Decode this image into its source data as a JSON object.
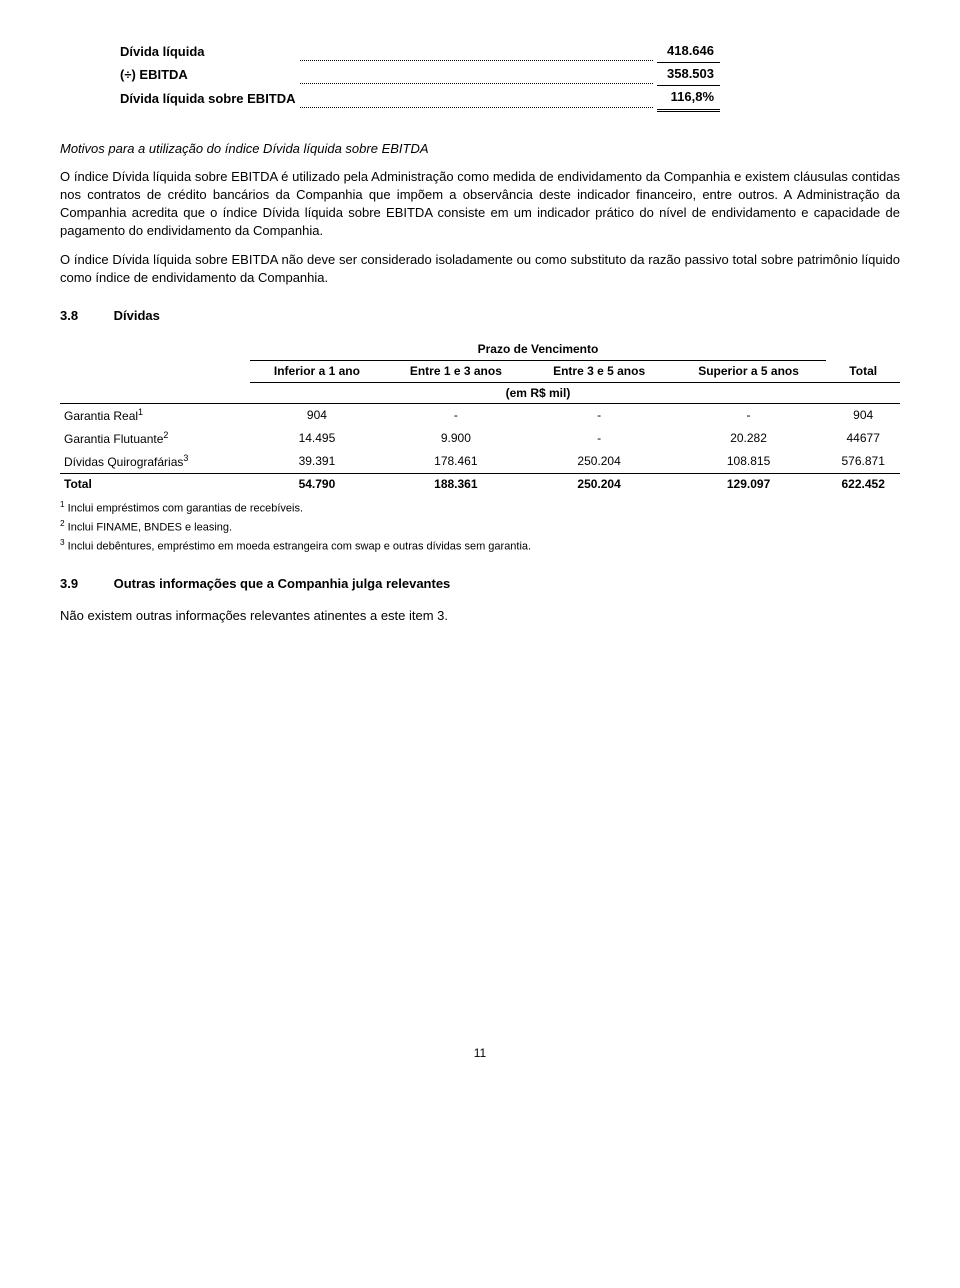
{
  "topTable": {
    "rows": [
      {
        "label": "Dívida líquida",
        "value": "418.646",
        "rule": "single"
      },
      {
        "label": "(÷) EBITDA",
        "value": "358.503",
        "rule": "single"
      },
      {
        "label": "Dívida líquida sobre EBITDA",
        "value": "116,8%",
        "rule": "double"
      }
    ]
  },
  "italicHeading": "Motivos para a utilização do índice Dívida líquida sobre EBITDA",
  "para1": "O índice Dívida líquida sobre EBITDA é utilizado pela Administração como medida de endividamento da Companhia e existem cláusulas contidas nos contratos de crédito bancários da Companhia que impõem a observância deste indicador financeiro, entre outros. A Administração da Companhia acredita que o índice Dívida líquida sobre EBITDA consiste em um indicador prático do nível de endividamento e capacidade de pagamento do endividamento da Companhia.",
  "para2": "O índice Dívida líquida sobre EBITDA não deve ser considerado isoladamente ou como substituto da razão passivo total sobre patrimônio líquido como índice de endividamento da Companhia.",
  "section38": {
    "num": "3.8",
    "title": "Dívidas"
  },
  "debtTable": {
    "spanHeader": "Prazo de Vencimento",
    "columns": [
      "Inferior a 1 ano",
      "Entre 1 e 3 anos",
      "Entre 3 e 5 anos",
      "Superior a 5 anos"
    ],
    "totalCol": "Total",
    "unitRow": "(em R$ mil)",
    "rows": [
      {
        "label": "Garantia Real",
        "sup": "1",
        "cells": [
          "904",
          "-",
          "-",
          "-",
          "904"
        ]
      },
      {
        "label": "Garantia Flutuante",
        "sup": "2",
        "cells": [
          "14.495",
          "9.900",
          "-",
          "20.282",
          "44677"
        ]
      },
      {
        "label": "Dívidas Quirografárias",
        "sup": "3",
        "cells": [
          "39.391",
          "178.461",
          "250.204",
          "108.815",
          "576.871"
        ]
      }
    ],
    "totalRow": {
      "label": "Total",
      "cells": [
        "54.790",
        "188.361",
        "250.204",
        "129.097",
        "622.452"
      ]
    }
  },
  "footnotes": [
    {
      "sup": "1",
      "text": "Inclui empréstimos com garantias de recebíveis."
    },
    {
      "sup": "2",
      "text": "Inclui FINAME, BNDES e leasing."
    },
    {
      "sup": "3",
      "text": "Inclui debêntures, empréstimo em moeda estrangeira com swap e outras dívidas sem garantia."
    }
  ],
  "section39": {
    "num": "3.9",
    "title": "Outras informações que a Companhia julga relevantes"
  },
  "para3": "Não existem outras informações relevantes atinentes a este item 3.",
  "pageNumber": "11"
}
